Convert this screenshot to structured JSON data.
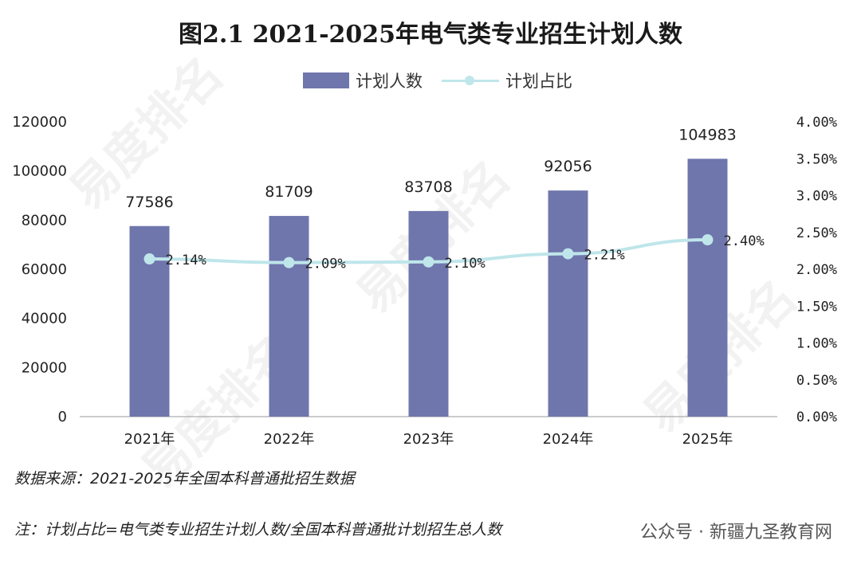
{
  "chart_data": {
    "type": "bar",
    "title": "图2.1 2021-2025年电气类专业招生计划人数",
    "categories": [
      "2021年",
      "2022年",
      "2023年",
      "2024年",
      "2025年"
    ],
    "series": [
      {
        "name": "计划人数",
        "type": "bar",
        "axis": "left",
        "values": [
          77586,
          81709,
          83708,
          92056,
          104983
        ],
        "labels": [
          "77586",
          "81709",
          "83708",
          "92056",
          "104983"
        ]
      },
      {
        "name": "计划占比",
        "type": "line",
        "axis": "right",
        "values": [
          2.14,
          2.09,
          2.1,
          2.21,
          2.4
        ],
        "labels": [
          "2.14%",
          "2.09%",
          "2.10%",
          "2.21%",
          "2.40%"
        ]
      }
    ],
    "y_left": {
      "min": 0,
      "max": 120000,
      "ticks": [
        "0",
        "20000",
        "40000",
        "60000",
        "80000",
        "100000",
        "120000"
      ]
    },
    "y_right": {
      "min": 0,
      "max": 4.0,
      "ticks": [
        "0.00%",
        "0.50%",
        "1.00%",
        "1.50%",
        "2.00%",
        "2.50%",
        "3.00%",
        "3.50%",
        "4.00%"
      ]
    },
    "legend": {
      "placement": "top-center"
    }
  },
  "colors": {
    "bar": "#6f76ac",
    "line": "#bfe6ea"
  },
  "notes": {
    "source": "数据来源：2021-2025年全国本科普通批招生数据",
    "formula": "注：计划占比=电气类专业招生计划人数/全国本科普通批计划招生总人数"
  },
  "tag": "公众号 · 新疆九圣教育网",
  "watermark": "易度排名"
}
